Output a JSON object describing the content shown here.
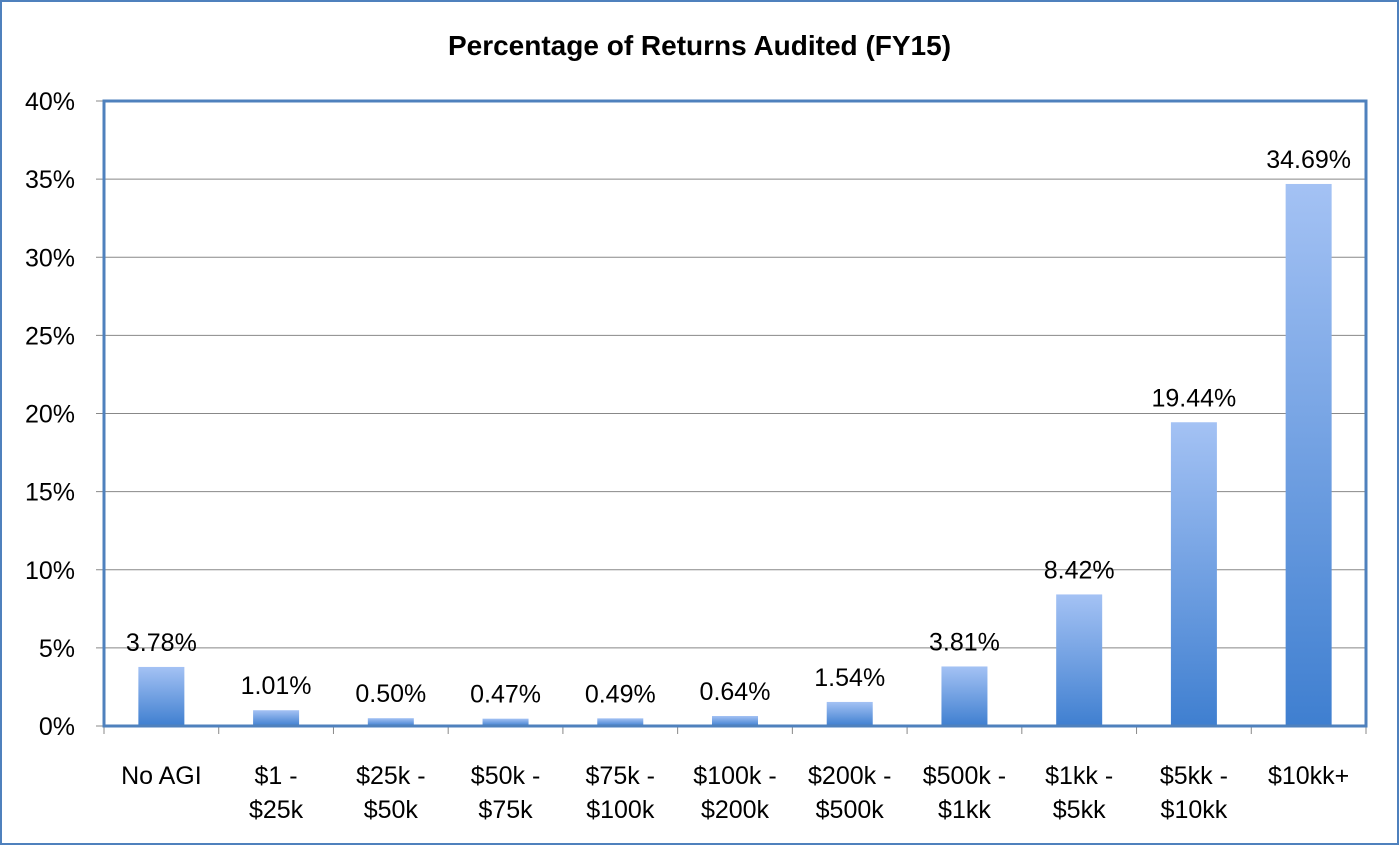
{
  "chart_data": {
    "type": "bar",
    "title": "Percentage of Returns Audited (FY15)",
    "categories": [
      [
        "No AGI"
      ],
      [
        "$1 -",
        "$25k"
      ],
      [
        "$25k -",
        "$50k"
      ],
      [
        "$50k -",
        "$75k"
      ],
      [
        "$75k -",
        "$100k"
      ],
      [
        "$100k -",
        "$200k"
      ],
      [
        "$200k -",
        "$500k"
      ],
      [
        "$500k -",
        "$1kk"
      ],
      [
        "$1kk -",
        "$5kk"
      ],
      [
        "$5kk -",
        "$10kk"
      ],
      [
        "$10kk+"
      ]
    ],
    "values": [
      3.78,
      1.01,
      0.5,
      0.47,
      0.49,
      0.64,
      1.54,
      3.81,
      8.42,
      19.44,
      34.69
    ],
    "data_labels": [
      "3.78%",
      "1.01%",
      "0.50%",
      "0.47%",
      "0.49%",
      "0.64%",
      "1.54%",
      "3.81%",
      "8.42%",
      "19.44%",
      "34.69%"
    ],
    "ylim": [
      0,
      40
    ],
    "yticks": [
      0,
      5,
      10,
      15,
      20,
      25,
      30,
      35,
      40
    ],
    "ytick_labels": [
      "0%",
      "5%",
      "10%",
      "15%",
      "20%",
      "25%",
      "30%",
      "35%",
      "40%"
    ],
    "xlabel": "",
    "ylabel": "",
    "grid": true,
    "legend": "none",
    "colors": {
      "bar_top": "#a4c2f4",
      "bar_bottom": "#3f7fd0",
      "plot_border": "#4f81bd",
      "frame_border": "#4f81bd",
      "grid": "#888888"
    }
  }
}
